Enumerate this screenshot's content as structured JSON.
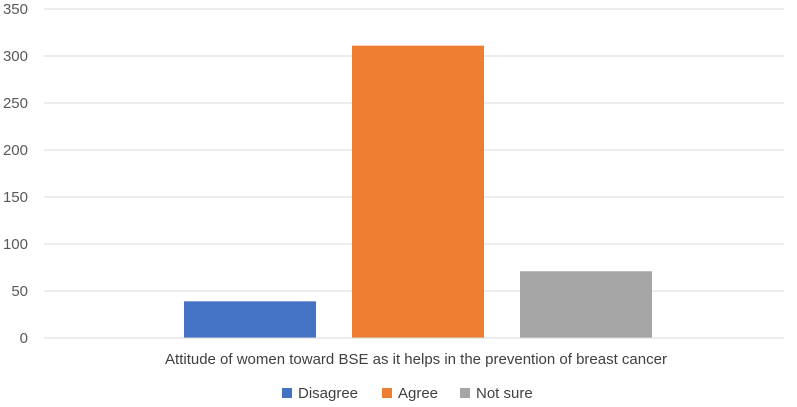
{
  "chart_data": {
    "type": "bar",
    "categories": [
      "Attitude of women toward BSE as it helps in the prevention of breast cancer"
    ],
    "series": [
      {
        "name": "Disagree",
        "values": [
          39
        ],
        "color": "#4472C4"
      },
      {
        "name": "Agree",
        "values": [
          311
        ],
        "color": "#ED7D31"
      },
      {
        "name": "Not sure",
        "values": [
          71
        ],
        "color": "#A5A5A5"
      }
    ],
    "y_ticks": [
      "0",
      "50",
      "100",
      "150",
      "200",
      "250",
      "300",
      "350"
    ],
    "ylim": [
      0,
      350
    ],
    "grid": true,
    "legend_position": "bottom"
  }
}
